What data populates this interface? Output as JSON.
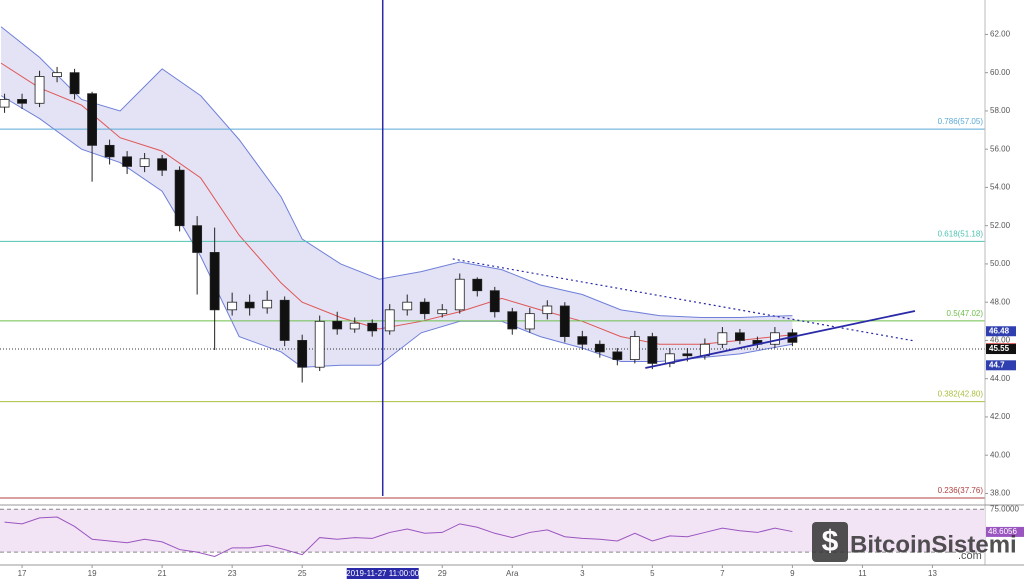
{
  "chart_data": {
    "type": "candlestick",
    "xticks": [
      {
        "value": 0,
        "label": "17"
      },
      {
        "value": 2,
        "label": "19"
      },
      {
        "value": 4,
        "label": "21"
      },
      {
        "value": 6,
        "label": "23"
      },
      {
        "value": 8,
        "label": "25"
      },
      {
        "value": 12,
        "label": "29"
      },
      {
        "value": 14,
        "label": "Ara"
      },
      {
        "value": 16,
        "label": "3"
      },
      {
        "value": 18,
        "label": "5"
      },
      {
        "value": 20,
        "label": "7"
      },
      {
        "value": 22,
        "label": "9"
      },
      {
        "value": 24,
        "label": "11"
      },
      {
        "value": 26,
        "label": "13"
      }
    ],
    "xlim": [
      -0.63,
      27.5
    ],
    "ylim": [
      37.5,
      63.8
    ],
    "yticks": [
      {
        "value": 38,
        "label": "38.00"
      },
      {
        "value": 40,
        "label": "40.00"
      },
      {
        "value": 42,
        "label": "42.00"
      },
      {
        "value": 44,
        "label": "44.00"
      },
      {
        "value": 46,
        "label": "46.00"
      },
      {
        "value": 48,
        "label": "48.00"
      },
      {
        "value": 50,
        "label": "50.00"
      },
      {
        "value": 52,
        "label": "52.00"
      },
      {
        "value": 54,
        "label": "54.00"
      },
      {
        "value": 56,
        "label": "56.00"
      },
      {
        "value": 58,
        "label": "58.00"
      },
      {
        "value": 60,
        "label": "60.00"
      },
      {
        "value": 62,
        "label": "62.00"
      }
    ],
    "candles": {
      "x": [
        -0.5,
        0,
        0.5,
        1,
        1.5,
        2,
        2.5,
        3,
        3.5,
        4,
        4.5,
        5,
        5.5,
        6,
        6.5,
        7,
        7.5,
        8,
        8.5,
        9,
        9.5,
        10,
        10.5,
        11,
        11.5,
        12,
        12.5,
        13,
        13.5,
        14,
        14.5,
        15,
        15.5,
        16,
        16.5,
        17,
        17.5,
        18,
        18.5,
        19,
        19.5,
        20,
        20.5,
        21,
        21.5,
        22
      ],
      "open": [
        58.2,
        58.6,
        58.4,
        59.8,
        60.0,
        58.9,
        56.2,
        55.6,
        55.1,
        55.5,
        54.9,
        52.0,
        50.6,
        47.6,
        48.0,
        47.7,
        48.1,
        46.0,
        44.6,
        47.0,
        46.6,
        46.9,
        46.5,
        47.6,
        48.0,
        47.4,
        47.6,
        49.2,
        48.6,
        47.5,
        46.6,
        47.4,
        47.8,
        46.2,
        45.8,
        45.4,
        45.0,
        46.2,
        44.8,
        45.3,
        45.2,
        45.8,
        46.4,
        46.0,
        45.8,
        46.4
      ],
      "high": [
        58.9,
        58.9,
        60.1,
        60.3,
        60.2,
        59.0,
        56.5,
        55.9,
        55.8,
        55.7,
        55.1,
        52.5,
        51.9,
        48.5,
        48.4,
        48.6,
        48.3,
        46.3,
        47.3,
        47.5,
        47.2,
        47.1,
        47.9,
        48.4,
        48.2,
        47.9,
        49.5,
        49.3,
        48.8,
        47.7,
        47.7,
        48.1,
        48.0,
        46.5,
        46.0,
        45.6,
        46.5,
        46.4,
        45.6,
        45.6,
        46.1,
        46.7,
        46.6,
        46.2,
        46.7,
        46.6
      ],
      "low": [
        57.9,
        58.1,
        58.2,
        59.5,
        58.6,
        54.3,
        55.2,
        54.7,
        54.8,
        54.6,
        51.7,
        48.4,
        45.5,
        47.3,
        47.3,
        47.4,
        45.7,
        43.8,
        44.4,
        46.3,
        46.4,
        46.2,
        46.3,
        47.3,
        47.1,
        47.2,
        47.4,
        48.3,
        47.2,
        46.3,
        46.4,
        47.1,
        45.9,
        45.5,
        45.1,
        44.7,
        44.8,
        44.5,
        44.6,
        44.9,
        45.0,
        45.6,
        45.8,
        45.6,
        45.6,
        45.7
      ],
      "close": [
        58.6,
        58.4,
        59.8,
        60.0,
        58.9,
        56.2,
        55.6,
        55.1,
        55.5,
        54.9,
        52.0,
        50.6,
        47.6,
        48.0,
        47.7,
        48.1,
        46.0,
        44.6,
        47.0,
        46.6,
        46.9,
        46.5,
        47.6,
        48.0,
        47.4,
        47.6,
        49.2,
        48.6,
        47.5,
        46.6,
        47.4,
        47.8,
        46.2,
        45.8,
        45.4,
        45.0,
        46.2,
        44.8,
        45.3,
        45.2,
        45.8,
        46.4,
        46.0,
        45.8,
        46.4,
        45.9
      ],
      "up_color": "#ffffff",
      "down_color": "#111111",
      "border_color": "#222222"
    },
    "bands": {
      "x": [
        -0.6,
        0.5,
        1.7,
        2.8,
        4,
        5.1,
        6.2,
        7.4,
        8.0,
        9.1,
        10.2,
        11.4,
        12.5,
        13.7,
        14.8,
        16,
        17.1,
        18.2,
        19.4,
        20.5,
        22
      ],
      "upper": [
        62.4,
        60.8,
        58.6,
        58.0,
        60.2,
        58.8,
        56.5,
        53.5,
        51.3,
        50.0,
        49.2,
        49.6,
        50.1,
        49.7,
        48.9,
        48.4,
        47.6,
        47.3,
        47.2,
        47.2,
        47.3
      ],
      "middle": [
        60.5,
        59.2,
        58.3,
        56.6,
        55.9,
        54.5,
        51.5,
        49.0,
        48.0,
        47.2,
        46.6,
        47.0,
        47.5,
        48.2,
        47.6,
        47.0,
        46.2,
        45.8,
        45.8,
        46.0,
        46.3
      ],
      "lower": [
        58.8,
        57.6,
        56.0,
        55.3,
        53.8,
        50.4,
        46.2,
        45.4,
        44.6,
        44.7,
        44.7,
        46.4,
        47.0,
        47.0,
        46.2,
        45.6,
        44.9,
        44.9,
        45.1,
        45.3,
        45.8
      ],
      "fill": "#dcdcf2",
      "edge_color": "#6f7fd8",
      "middle_color": "#e05555"
    },
    "fib_levels": [
      {
        "value": 57.05,
        "label": "0.786(57.05)",
        "color": "#5aa9d6"
      },
      {
        "value": 51.18,
        "label": "0.618(51.18)",
        "color": "#4fc2b0"
      },
      {
        "value": 47.02,
        "label": "0.5(47.02)",
        "color": "#6cbf4a"
      },
      {
        "value": 42.8,
        "label": "0.382(42.80)",
        "color": "#a8c040"
      },
      {
        "value": 37.76,
        "label": "0.236(37.76)",
        "color": "#b04040"
      }
    ],
    "price_line": 45.55,
    "price_tags": [
      {
        "value": 46.48,
        "color": "#2f3fb0"
      },
      {
        "value": 45.59,
        "color": "#d03030"
      },
      {
        "value": 45.55,
        "color": "#111111"
      },
      {
        "value": 44.7,
        "color": "#2f3fb0"
      }
    ],
    "trendlines": [
      {
        "x": [
          17.8,
          25.5
        ],
        "y": [
          44.56,
          47.54
        ],
        "color": "#2a2aa8",
        "dash": false
      },
      {
        "x": [
          12.3,
          25.5
        ],
        "y": [
          50.26,
          45.97
        ],
        "color": "#2a2aa8",
        "dash": true
      }
    ],
    "crosshair": {
      "x": 10.3,
      "label": "2019-11-27 11:00:00",
      "color": "#2a2aa8"
    },
    "rsi": {
      "ylim": [
        10,
        80
      ],
      "levels": [
        {
          "value": 75,
          "label": "75.0000"
        },
        {
          "value": 25
        }
      ],
      "values": [
        60,
        58,
        65,
        66,
        55,
        40,
        38,
        36,
        40,
        37,
        28,
        25,
        20,
        30,
        30,
        33,
        28,
        22,
        42,
        40,
        42,
        41,
        48,
        52,
        47,
        48,
        58,
        54,
        47,
        42,
        48,
        51,
        43,
        41,
        40,
        38,
        47,
        38,
        44,
        43,
        48,
        53,
        50,
        48,
        53,
        49
      ],
      "current": {
        "value": 48.6056,
        "label": "48.6056"
      },
      "color": "#9a55c0",
      "fill": "#f2e4f4"
    },
    "watermark": {
      "name": "BitcoinSistemi",
      "suffix": ".com"
    }
  }
}
